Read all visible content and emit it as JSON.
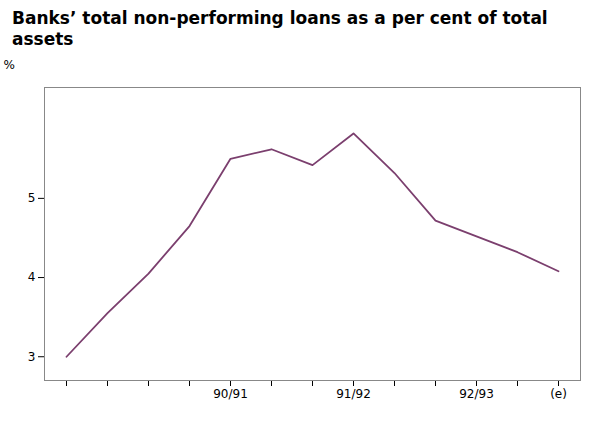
{
  "chart_data": {
    "type": "line",
    "title": "Banks’ total non-performing loans as a per cent of total assets",
    "ylabel": "%",
    "categories": [
      null,
      null,
      null,
      null,
      "90/91",
      null,
      null,
      "91/92",
      null,
      null,
      "92/93",
      null,
      "(e)"
    ],
    "values": [
      3.0,
      3.55,
      4.05,
      4.65,
      5.5,
      5.62,
      5.42,
      5.82,
      5.32,
      4.72,
      4.52,
      4.32,
      4.08
    ],
    "color": "#7B3F6E",
    "ylim": [
      2.7,
      6.4
    ],
    "yticks": [
      3,
      4,
      5
    ],
    "grid": false
  }
}
